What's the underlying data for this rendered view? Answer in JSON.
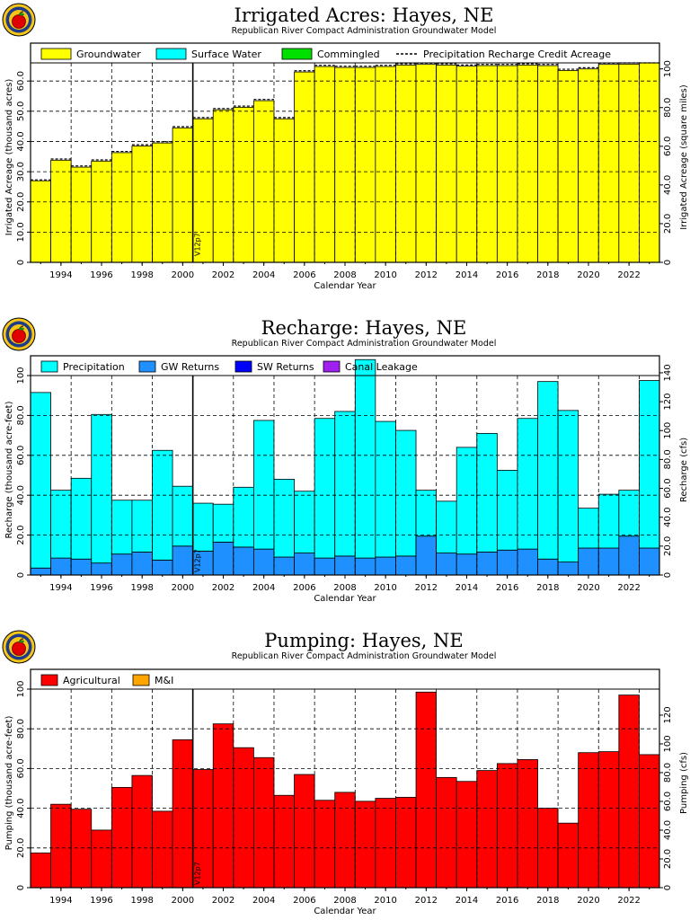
{
  "colors": {
    "groundwater": "#ffff00",
    "surface_water": "#00ffff",
    "commingled": "#00e000",
    "precipitation": "#00ffff",
    "gw_returns": "#1e90ff",
    "sw_returns": "#0000ff",
    "canal_leakage": "#a020f0",
    "agricultural": "#ff0000",
    "mi": "#ffa500",
    "grid": "#000000"
  },
  "logo": {
    "icon": "apple-in-seal-icon"
  },
  "chart_data": [
    {
      "type": "bar",
      "title": "Irrigated Acres: Hayes, NE",
      "subtitle": "Republican River Compact Administration Groundwater Model",
      "xlabel": "Calendar Year",
      "ylabel": "Irrigated Acreage (thousand acres)",
      "y2label": "Irrigated Acreage (square miles)",
      "marker_label": "V12p7",
      "marker_year": 2000.5,
      "xlim": [
        1992.5,
        2023.5
      ],
      "ylim": [
        0,
        66
      ],
      "y2lim": [
        0,
        103.1
      ],
      "grid": true,
      "legend_position": "top",
      "xticks": [
        "1994",
        "1996",
        "1998",
        "2000",
        "2002",
        "2004",
        "2006",
        "2008",
        "2010",
        "2012",
        "2014",
        "2016",
        "2018",
        "2020",
        "2022"
      ],
      "yticks": [
        "0",
        "10.0",
        "20.0",
        "30.0",
        "40.0",
        "50.0",
        "60.0"
      ],
      "y2ticks": [
        "0",
        "20.0",
        "40.0",
        "60.0",
        "80.0",
        "100"
      ],
      "legend": [
        "Groundwater",
        "Surface Water",
        "Commingled",
        "Precipitation Recharge Credit Acreage"
      ],
      "x": [
        1993,
        1994,
        1995,
        1996,
        1997,
        1998,
        1999,
        2000,
        2001,
        2002,
        2003,
        2004,
        2005,
        2006,
        2007,
        2008,
        2009,
        2010,
        2011,
        2012,
        2013,
        2014,
        2015,
        2016,
        2017,
        2018,
        2019,
        2020,
        2021,
        2022,
        2023
      ],
      "series": [
        {
          "name": "Groundwater",
          "values": [
            27.0,
            33.8,
            31.5,
            33.5,
            36.3,
            38.5,
            39.5,
            44.5,
            47.5,
            50.5,
            51.3,
            53.5,
            47.5,
            63.0,
            64.8,
            64.5,
            64.5,
            64.8,
            65.3,
            65.5,
            65.3,
            64.9,
            65.1,
            65.1,
            65.3,
            65.1,
            63.5,
            64.0,
            65.5,
            65.6,
            66.0
          ]
        },
        {
          "name": "Precipitation Recharge Credit Acreage",
          "values": [
            27.3,
            34.2,
            31.9,
            33.9,
            36.7,
            38.9,
            39.9,
            44.9,
            47.9,
            50.9,
            51.7,
            53.9,
            47.9,
            63.4,
            65.2,
            64.9,
            64.9,
            65.2,
            65.7,
            65.9,
            65.7,
            65.3,
            65.5,
            65.5,
            65.7,
            65.5,
            63.9,
            64.4,
            65.9,
            66.0,
            66.0
          ]
        }
      ]
    },
    {
      "type": "bar",
      "title": "Recharge: Hayes, NE",
      "subtitle": "Republican River Compact Administration Groundwater Model",
      "xlabel": "Calendar Year",
      "ylabel": "Recharge (thousand acre-feet)",
      "y2label": "Recharge (cfs)",
      "marker_label": "V12p7",
      "marker_year": 2000.5,
      "xlim": [
        1992.5,
        2023.5
      ],
      "ylim": [
        0,
        100
      ],
      "y2lim": [
        0,
        138.1
      ],
      "grid": true,
      "legend_position": "top",
      "xticks": [
        "1994",
        "1996",
        "1998",
        "2000",
        "2002",
        "2004",
        "2006",
        "2008",
        "2010",
        "2012",
        "2014",
        "2016",
        "2018",
        "2020",
        "2022"
      ],
      "yticks": [
        "0",
        "20.0",
        "40.0",
        "60.0",
        "80.0",
        "100"
      ],
      "y2ticks": [
        "0",
        "20.0",
        "40.0",
        "60.0",
        "80.0",
        "100",
        "120",
        "140"
      ],
      "legend": [
        "Precipitation",
        "GW Returns",
        "SW Returns",
        "Canal Leakage"
      ],
      "x": [
        1993,
        1994,
        1995,
        1996,
        1997,
        1998,
        1999,
        2000,
        2001,
        2002,
        2003,
        2004,
        2005,
        2006,
        2007,
        2008,
        2009,
        2010,
        2011,
        2012,
        2013,
        2014,
        2015,
        2016,
        2017,
        2018,
        2019,
        2020,
        2021,
        2022,
        2023
      ],
      "series": [
        {
          "name": "GW Returns",
          "values": [
            3.5,
            8.5,
            8,
            6,
            10.5,
            11.5,
            7.5,
            14.5,
            12,
            16.5,
            14,
            13,
            9,
            11,
            8.5,
            9.5,
            8.5,
            9,
            9.5,
            19.5,
            11,
            10.5,
            11.5,
            12.5,
            13,
            8,
            6.5,
            13.5,
            13.5,
            19.5,
            13.5
          ]
        },
        {
          "name": "Precipitation",
          "values": [
            88,
            34,
            40.5,
            74.5,
            27,
            26,
            55,
            30,
            24,
            19,
            30,
            64.5,
            39,
            31,
            70,
            72.5,
            99.5,
            68,
            63,
            23,
            26,
            53.5,
            59.5,
            40,
            65.5,
            89,
            76,
            20,
            27,
            23,
            84
          ]
        }
      ]
    },
    {
      "type": "bar",
      "title": "Pumping: Hayes, NE",
      "subtitle": "Republican River Compact Administration Groundwater Model",
      "xlabel": "Calendar Year",
      "ylabel": "Pumping (thousand acre-feet)",
      "y2label": "Pumping (cfs)",
      "marker_label": "V12p7",
      "marker_year": 2000.5,
      "xlim": [
        1992.5,
        2023.5
      ],
      "ylim": [
        0,
        100
      ],
      "y2lim": [
        0,
        138.1
      ],
      "grid": true,
      "legend_position": "top",
      "xticks": [
        "1994",
        "1996",
        "1998",
        "2000",
        "2002",
        "2004",
        "2006",
        "2008",
        "2010",
        "2012",
        "2014",
        "2016",
        "2018",
        "2020",
        "2022"
      ],
      "yticks": [
        "0",
        "20.0",
        "40.0",
        "60.0",
        "80.0",
        "100"
      ],
      "y2ticks": [
        "0",
        "20.0",
        "40.0",
        "60.0",
        "80.0",
        "100",
        "120"
      ],
      "legend": [
        "Agricultural",
        "M&I"
      ],
      "x": [
        1993,
        1994,
        1995,
        1996,
        1997,
        1998,
        1999,
        2000,
        2001,
        2002,
        2003,
        2004,
        2005,
        2006,
        2007,
        2008,
        2009,
        2010,
        2011,
        2012,
        2013,
        2014,
        2015,
        2016,
        2017,
        2018,
        2019,
        2020,
        2021,
        2022,
        2023
      ],
      "series": [
        {
          "name": "Agricultural",
          "values": [
            17.5,
            42,
            39.5,
            29,
            50.5,
            56.5,
            38.5,
            74.5,
            59.5,
            82.5,
            70.5,
            65.5,
            46.5,
            57,
            44,
            48,
            43.5,
            45,
            45.5,
            98.5,
            55.5,
            53.5,
            59,
            62.5,
            64.5,
            40,
            32.5,
            68,
            68.5,
            97,
            67
          ]
        }
      ]
    }
  ]
}
